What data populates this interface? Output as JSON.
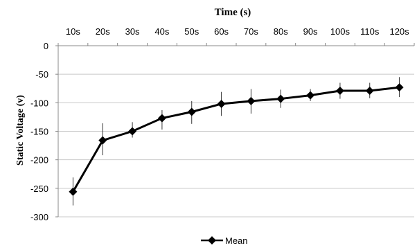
{
  "chart_data": {
    "type": "line",
    "title": "Time (s)",
    "ylabel": "Static Voltage (v)",
    "categories": [
      "10s",
      "20s",
      "30s",
      "40s",
      "50s",
      "60s",
      "70s",
      "80s",
      "90s",
      "100s",
      "110s",
      "120s"
    ],
    "yticks": [
      "0",
      "-50",
      "-100",
      "-150",
      "-200",
      "-250",
      "-300"
    ],
    "ylim": [
      -300,
      0
    ],
    "grid": true,
    "legend_position": "bottom",
    "series": [
      {
        "name": "Mean",
        "values": [
          -256,
          -166,
          -150,
          -127,
          -116,
          -102,
          -97,
          -93,
          -87,
          -79,
          -79,
          -73
        ],
        "error_low": [
          -280,
          -192,
          -161,
          -147,
          -137,
          -123,
          -119,
          -109,
          -97,
          -93,
          -92,
          -90
        ],
        "error_high": [
          -231,
          -136,
          -134,
          -113,
          -97,
          -81,
          -76,
          -77,
          -76,
          -65,
          -65,
          -55
        ]
      }
    ]
  }
}
